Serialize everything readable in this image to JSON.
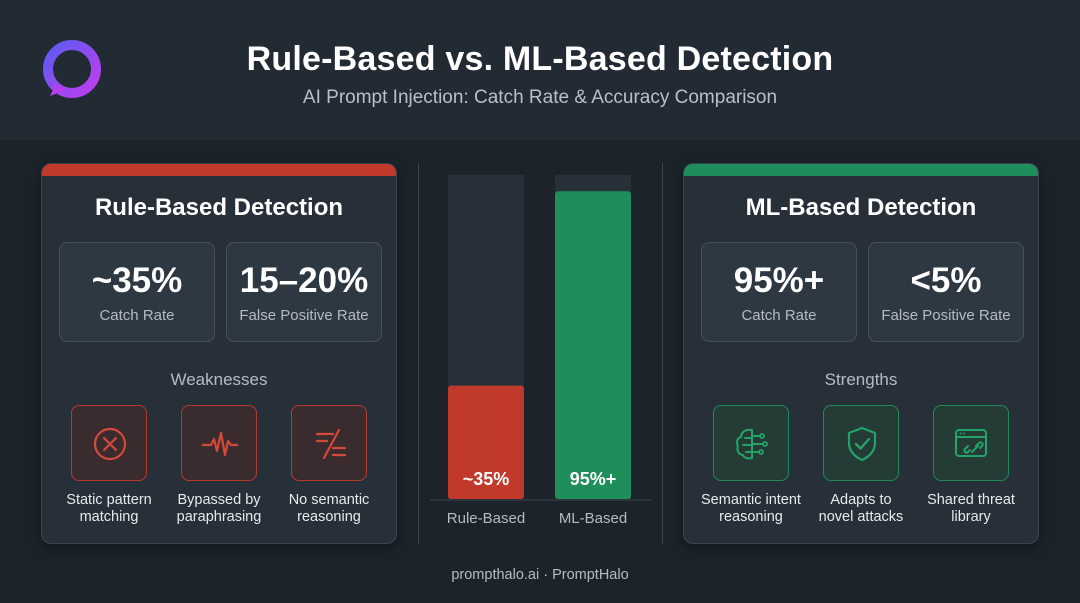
{
  "header": {
    "title": "Rule-Based vs. ML-Based Detection",
    "subtitle": "AI Prompt Injection: Catch Rate & Accuracy Comparison"
  },
  "left_panel": {
    "title": "Rule-Based Detection",
    "accent_color": "#c0392b",
    "stats": [
      {
        "value": "~35%",
        "label": "Catch Rate"
      },
      {
        "value": "15–20%",
        "label": "False Positive Rate"
      }
    ],
    "section_label": "Weaknesses",
    "features": [
      {
        "icon": "x-circle-icon",
        "label_line1": "Static pattern",
        "label_line2": "matching"
      },
      {
        "icon": "pulse-wave-icon",
        "label_line1": "Bypassed by",
        "label_line2": "paraphrasing"
      },
      {
        "icon": "not-equal-icon",
        "label_line1": "No semantic",
        "label_line2": "reasoning"
      }
    ]
  },
  "right_panel": {
    "title": "ML-Based Detection",
    "accent_color": "#1e8e5a",
    "stats": [
      {
        "value": "95%+",
        "label": "Catch Rate"
      },
      {
        "value": "<5%",
        "label": "False Positive Rate"
      }
    ],
    "section_label": "Strengths",
    "features": [
      {
        "icon": "brain-circuit-icon",
        "label_line1": "Semantic intent",
        "label_line2": "reasoning"
      },
      {
        "icon": "shield-check-icon",
        "label_line1": "Adapts to",
        "label_line2": "novel attacks"
      },
      {
        "icon": "browser-link-icon",
        "label_line1": "Shared threat",
        "label_line2": "library"
      }
    ]
  },
  "chart_data": {
    "type": "bar",
    "categories": [
      "Rule-Based",
      "ML-Based"
    ],
    "values": [
      35,
      95
    ],
    "value_labels": [
      "~35%",
      "95%+"
    ],
    "colors": [
      "#c0392b",
      "#1e8e5a"
    ],
    "ylim": [
      0,
      100
    ],
    "title": "",
    "xlabel": "",
    "ylabel": ""
  },
  "footer": {
    "text": "prompthalo.ai · PromptHalo"
  }
}
